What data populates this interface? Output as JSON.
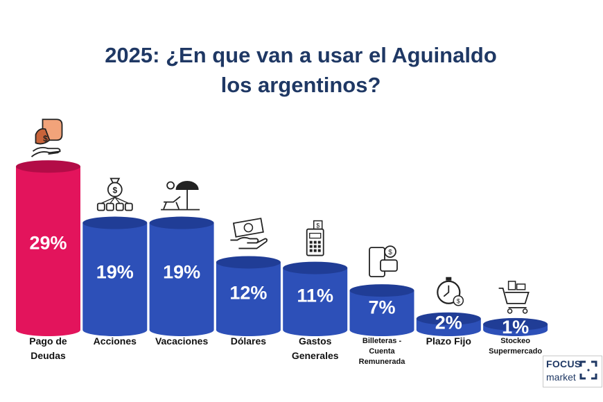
{
  "title_line1": "2025: ¿En que van a usar el Aguinaldo",
  "title_line2": "los argentinos?",
  "logo": {
    "line1": "FOCUS",
    "line2": "market"
  },
  "colors": {
    "highlight": "#e3145c",
    "primary": "#2d50b8",
    "title": "#1f3864"
  },
  "chart_data": {
    "type": "bar",
    "categories": [
      "Pago de Deudas",
      "Acciones",
      "Vacaciones",
      "Dólares",
      "Gastos Generales",
      "Billeteras - Cuenta Remunerada",
      "Plazo Fijo",
      "Stockeo Supermercado"
    ],
    "values": [
      29,
      19,
      19,
      12,
      11,
      7,
      2,
      1
    ],
    "labels": [
      "29%",
      "19%",
      "19%",
      "12%",
      "11%",
      "7%",
      "2%",
      "1%"
    ],
    "category_lines": [
      [
        "Pago de",
        "Deudas"
      ],
      [
        "Acciones"
      ],
      [
        "Vacaciones"
      ],
      [
        "Dólares"
      ],
      [
        "Gastos",
        "Generales"
      ],
      [
        "Billeteras -",
        "Cuenta",
        "Remunerada"
      ],
      [
        "Plazo Fijo"
      ],
      [
        "Stockeo",
        "Supermercado"
      ]
    ],
    "icons": [
      "hands-money-icon",
      "investment-icon",
      "beach-umbrella-icon",
      "dollar-bill-hand-icon",
      "cash-register-icon",
      "mobile-wallet-icon",
      "stopwatch-money-icon",
      "shopping-cart-icon"
    ],
    "unit": "%",
    "grid": false,
    "legend": "none",
    "highlight_index": 0
  }
}
